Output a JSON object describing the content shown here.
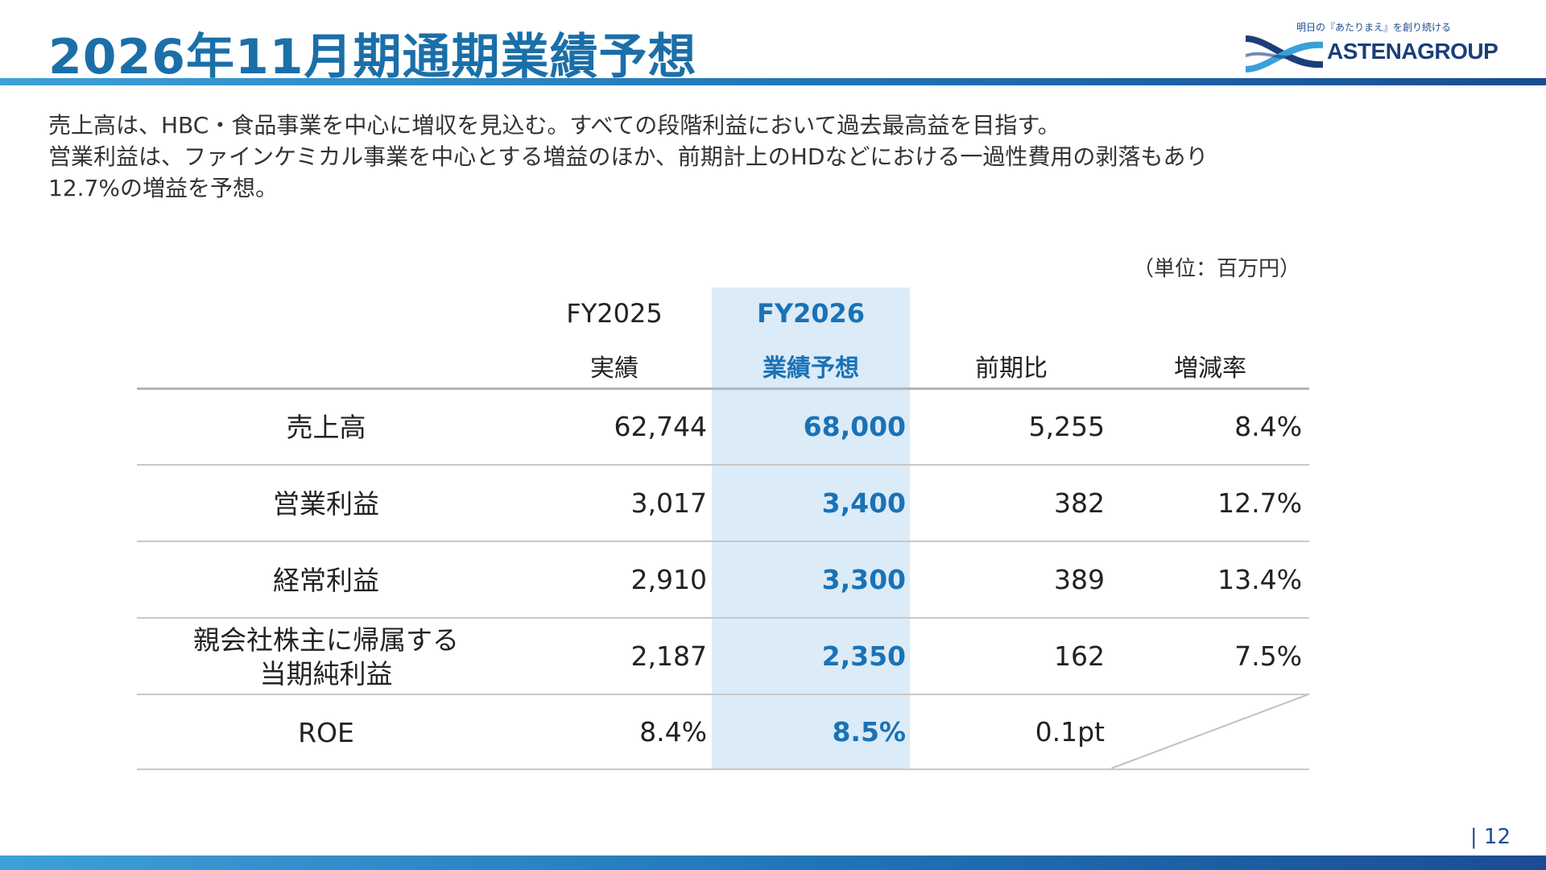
{
  "slide": {
    "title": "2026年11月期通期業績予想",
    "page_number": "| 12"
  },
  "logo": {
    "tagline": "明日の『あたりまえ』を創り続ける",
    "wordmark": "ASTENAGROUP",
    "colors": {
      "dark": "#1b3e7a",
      "light": "#3aa0d8"
    }
  },
  "intro": {
    "lines": [
      "売上高は、HBC・食品事業を中心に増収を見込む。すべての段階利益において過去最高益を目指す。",
      "営業利益は、ファインケミカル事業を中心とする増益のほか、前期計上のHDなどにおける一過性費用の剥落もあり",
      "12.7%の増益を予想。"
    ]
  },
  "table": {
    "unit_note": "（単位：百万円）",
    "headers": {
      "fy2025": {
        "line1": "FY2025",
        "line2": "実績"
      },
      "fy2026": {
        "line1": "FY2026",
        "line2": "業績予想"
      },
      "yoy": "前期比",
      "rate": "増減率"
    },
    "rows": [
      {
        "label": "売上高",
        "fy2025": "62,744",
        "fy2026": "68,000",
        "yoy": "5,255",
        "rate": "8.4%"
      },
      {
        "label": "営業利益",
        "fy2025": "3,017",
        "fy2026": "3,400",
        "yoy": "382",
        "rate": "12.7%"
      },
      {
        "label": "経常利益",
        "fy2025": "2,910",
        "fy2026": "3,300",
        "yoy": "389",
        "rate": "13.4%"
      },
      {
        "label_line1": "親会社株主に帰属する",
        "label_line2": "当期純利益",
        "fy2025": "2,187",
        "fy2026": "2,350",
        "yoy": "162",
        "rate": "7.5%"
      },
      {
        "label": "ROE",
        "fy2025": "8.4%",
        "fy2026": "8.5%",
        "yoy": "0.1pt",
        "rate": ""
      }
    ],
    "colors": {
      "accent": "#1a72b6",
      "highlight_bg": "#dbebf7"
    }
  }
}
